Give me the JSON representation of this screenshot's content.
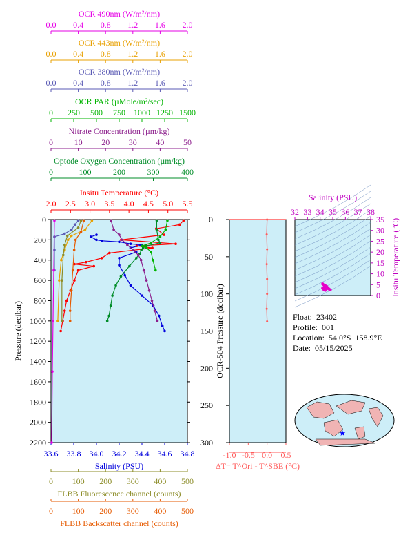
{
  "chart_data": [
    {
      "type": "line",
      "name": "main-profile",
      "y_axis": {
        "label": "Pressure (decibar)",
        "ylim": [
          2200,
          0
        ],
        "ticks": [
          0,
          200,
          400,
          600,
          800,
          1000,
          1200,
          1400,
          1600,
          1800,
          2000,
          2200
        ]
      },
      "top_axes": [
        {
          "key": "ocr490",
          "label": "OCR 490nm (W/m²/nm)",
          "range": [
            0,
            2.0
          ],
          "ticks": [
            "0.0",
            "0.4",
            "0.8",
            "1.2",
            "1.6",
            "2.0"
          ],
          "color": "#e600e6"
        },
        {
          "key": "ocr443",
          "label": "OCR 443nm (W/m²/nm)",
          "range": [
            0,
            2.0
          ],
          "ticks": [
            "0.0",
            "0.4",
            "0.8",
            "1.2",
            "1.6",
            "2.0"
          ],
          "color": "#e8a000"
        },
        {
          "key": "ocr380",
          "label": "OCR 380nm (W/m²/nm)",
          "range": [
            0,
            2.0
          ],
          "ticks": [
            "0.0",
            "0.4",
            "0.8",
            "1.2",
            "1.6",
            "2.0"
          ],
          "color": "#5a5ab4"
        },
        {
          "key": "par",
          "label": "OCR PAR (µMole/m²/sec)",
          "range": [
            0,
            1500
          ],
          "ticks": [
            "0",
            "250",
            "500",
            "750",
            "1000",
            "1250",
            "1500"
          ],
          "color": "#00b400"
        },
        {
          "key": "nitrate",
          "label": "Nitrate Concentration (µm/kg)",
          "range": [
            0,
            50
          ],
          "ticks": [
            "0",
            "10",
            "20",
            "30",
            "40",
            "50"
          ],
          "color": "#8c1e8c"
        },
        {
          "key": "oxygen",
          "label": "Optode Oxygen Concentration (µm/kg)",
          "range": [
            0,
            400
          ],
          "ticks": [
            "0",
            "100",
            "200",
            "300",
            "400"
          ],
          "color": "#008c28"
        },
        {
          "key": "temp",
          "label": "Insitu Temperature (°C)",
          "range": [
            2.0,
            5.5
          ],
          "ticks": [
            "2.0",
            "2.5",
            "3.0",
            "3.5",
            "4.0",
            "4.5",
            "5.0",
            "5.5"
          ],
          "color": "#ff0000"
        }
      ],
      "bottom_axes": [
        {
          "key": "sal",
          "label": "Salinity (PSU)",
          "range": [
            33.6,
            34.8
          ],
          "ticks": [
            "33.6",
            "33.8",
            "34.0",
            "34.2",
            "34.4",
            "34.6",
            "34.8"
          ],
          "color": "#0000dc"
        },
        {
          "key": "fluor",
          "label": "FLBB Fluorescence channel (counts)",
          "range": [
            0,
            500
          ],
          "ticks": [
            "0",
            "100",
            "200",
            "300",
            "400",
            "500"
          ],
          "color": "#8c8c28"
        },
        {
          "key": "bbp",
          "label": "FLBB Backscatter channel (counts)",
          "range": [
            0,
            500
          ],
          "ticks": [
            "0",
            "100",
            "200",
            "300",
            "400",
            "500"
          ],
          "color": "#e65a00"
        }
      ],
      "series": [
        {
          "name": "Insitu Temperature",
          "key": "temp",
          "color": "#ff0000",
          "points": [
            [
              5.4,
              10
            ],
            [
              5.3,
              50
            ],
            [
              4.7,
              90
            ],
            [
              4.9,
              150
            ],
            [
              3.8,
              200
            ],
            [
              5.2,
              240
            ],
            [
              4.2,
              260
            ],
            [
              4.6,
              280
            ],
            [
              3.5,
              330
            ],
            [
              3.3,
              380
            ],
            [
              2.9,
              420
            ],
            [
              2.6,
              440
            ],
            [
              3.1,
              460
            ],
            [
              2.7,
              500
            ],
            [
              2.6,
              600
            ],
            [
              2.5,
              700
            ],
            [
              2.4,
              800
            ],
            [
              2.35,
              900
            ],
            [
              2.3,
              1000
            ],
            [
              2.25,
              1100
            ]
          ]
        },
        {
          "name": "Salinity",
          "key": "sal",
          "color": "#0000dc",
          "points": [
            [
              34.0,
              150
            ],
            [
              33.95,
              170
            ],
            [
              34.0,
              200
            ],
            [
              34.05,
              210
            ],
            [
              34.2,
              220
            ],
            [
              34.3,
              240
            ],
            [
              34.4,
              250
            ],
            [
              34.3,
              280
            ],
            [
              34.35,
              320
            ],
            [
              34.2,
              380
            ],
            [
              34.2,
              450
            ],
            [
              34.25,
              550
            ],
            [
              34.3,
              650
            ],
            [
              34.4,
              750
            ],
            [
              34.5,
              850
            ],
            [
              34.55,
              950
            ],
            [
              34.58,
              1050
            ],
            [
              34.6,
              1100
            ]
          ]
        },
        {
          "name": "Optode Oxygen Concentration",
          "key": "oxygen",
          "color": "#008c28",
          "points": [
            [
              310,
              10
            ],
            [
              310,
              100
            ],
            [
              315,
              200
            ],
            [
              320,
              230
            ],
            [
              280,
              260
            ],
            [
              270,
              280
            ],
            [
              265,
              300
            ],
            [
              260,
              340
            ],
            [
              250,
              380
            ],
            [
              230,
              460
            ],
            [
              205,
              560
            ],
            [
              190,
              650
            ],
            [
              180,
              750
            ],
            [
              175,
              850
            ],
            [
              170,
              950
            ],
            [
              165,
              1000
            ]
          ]
        },
        {
          "name": "Nitrate Concentration",
          "key": "nitrate",
          "color": "#8c1e8c",
          "points": [
            [
              22,
              10
            ],
            [
              23,
              100
            ],
            [
              25,
              150
            ],
            [
              26,
              200
            ],
            [
              28,
              250
            ],
            [
              30,
              300
            ],
            [
              32,
              350
            ],
            [
              33,
              400
            ],
            [
              34,
              500
            ],
            [
              35,
              600
            ],
            [
              36,
              700
            ],
            [
              37,
              800
            ],
            [
              38,
              900
            ],
            [
              39,
              1000
            ]
          ]
        },
        {
          "name": "OCR PAR",
          "key": "par",
          "color": "#00b400",
          "points": [
            [
              1280,
              10
            ],
            [
              1260,
              100
            ],
            [
              1200,
              170
            ],
            [
              1100,
              230
            ],
            [
              1000,
              260
            ],
            [
              1050,
              280
            ],
            [
              1100,
              320
            ],
            [
              1120,
              400
            ],
            [
              1150,
              500
            ]
          ]
        },
        {
          "name": "OCR 380nm",
          "key": "ocr380",
          "color": "#5a5ab4",
          "points": [
            [
              0.4,
              10
            ],
            [
              0.35,
              50
            ],
            [
              0.3,
              100
            ],
            [
              0.2,
              140
            ],
            [
              0.05,
              170
            ],
            [
              0.05,
              300
            ],
            [
              0.05,
              500
            ]
          ]
        },
        {
          "name": "OCR 443nm",
          "key": "ocr443",
          "color": "#e8a000",
          "points": [
            [
              0.6,
              10
            ],
            [
              0.5,
              100
            ],
            [
              0.3,
              160
            ],
            [
              0.25,
              200
            ],
            [
              0.2,
              300
            ],
            [
              0.15,
              400
            ],
            [
              0.12,
              600
            ],
            [
              0.1,
              1000
            ]
          ]
        },
        {
          "name": "OCR 490nm",
          "key": "ocr490",
          "color": "#e600e6",
          "points": [
            [
              0.05,
              10
            ],
            [
              0.04,
              500
            ],
            [
              0.03,
              1000
            ],
            [
              0.02,
              1500
            ],
            [
              0.01,
              2200
            ]
          ]
        },
        {
          "name": "FLBB Fluorescence",
          "key": "fluor",
          "color": "#8c8c28",
          "points": [
            [
              110,
              10
            ],
            [
              100,
              80
            ],
            [
              60,
              160
            ],
            [
              50,
              250
            ],
            [
              45,
              350
            ],
            [
              40,
              600
            ],
            [
              40,
              1000
            ]
          ]
        },
        {
          "name": "FLBB Backscatter",
          "key": "bbp",
          "color": "#e65a00",
          "points": [
            [
              120,
              10
            ],
            [
              110,
              120
            ],
            [
              90,
              200
            ],
            [
              85,
              300
            ],
            [
              80,
              500
            ],
            [
              75,
              700
            ],
            [
              70,
              900
            ],
            [
              70,
              1000
            ]
          ]
        }
      ]
    },
    {
      "type": "line",
      "name": "delta-t",
      "xlabel": "ΔT= T^Ori - T^SBE (°C)",
      "xlim": [
        -1.0,
        0.5
      ],
      "xticks": [
        "-1.0",
        "-0.5",
        "0.0",
        "0.5"
      ],
      "ylabel": "OCR-504 Pressure (decibar)",
      "ylim": [
        300,
        0
      ],
      "yticks": [
        "0",
        "50",
        "100",
        "150",
        "200",
        "250",
        "300"
      ],
      "series": [
        {
          "name": "ΔT",
          "color": "#ff5a5a",
          "points": [
            [
              0.0,
              0
            ],
            [
              -0.01,
              20
            ],
            [
              0.0,
              40
            ],
            [
              -0.01,
              60
            ],
            [
              0.0,
              80
            ],
            [
              0.0,
              100
            ],
            [
              -0.01,
              120
            ],
            [
              0.0,
              137
            ]
          ]
        }
      ]
    },
    {
      "type": "scatter",
      "name": "ts-diagram",
      "xlabel": "Salinity (PSU)",
      "xlim": [
        32,
        38
      ],
      "xticks": [
        "32",
        "33",
        "34",
        "35",
        "36",
        "37",
        "38"
      ],
      "ylabel": "Insitu Temperature (°C)",
      "ylim": [
        0,
        35
      ],
      "yticks": [
        "0",
        "5",
        "10",
        "15",
        "20",
        "25",
        "30",
        "35"
      ],
      "series": [
        {
          "name": "T-S",
          "color": "#e600c8",
          "points": [
            [
              34.2,
              5.3
            ],
            [
              34.3,
              4.8
            ],
            [
              34.4,
              4.5
            ],
            [
              34.35,
              4.0
            ],
            [
              34.5,
              4.2
            ],
            [
              34.6,
              3.6
            ],
            [
              34.7,
              3.0
            ],
            [
              34.8,
              2.6
            ],
            [
              34.5,
              3.1
            ],
            [
              34.3,
              2.7
            ],
            [
              34.4,
              2.4
            ],
            [
              34.2,
              3.4
            ]
          ]
        }
      ]
    }
  ],
  "info": {
    "float": "Float:  23402",
    "profile": "Profile:  001",
    "location": "Location:  54.0°S  158.9°E",
    "date": "Date:  05/15/2025"
  },
  "map": {
    "marker_color": "#0000ff"
  }
}
